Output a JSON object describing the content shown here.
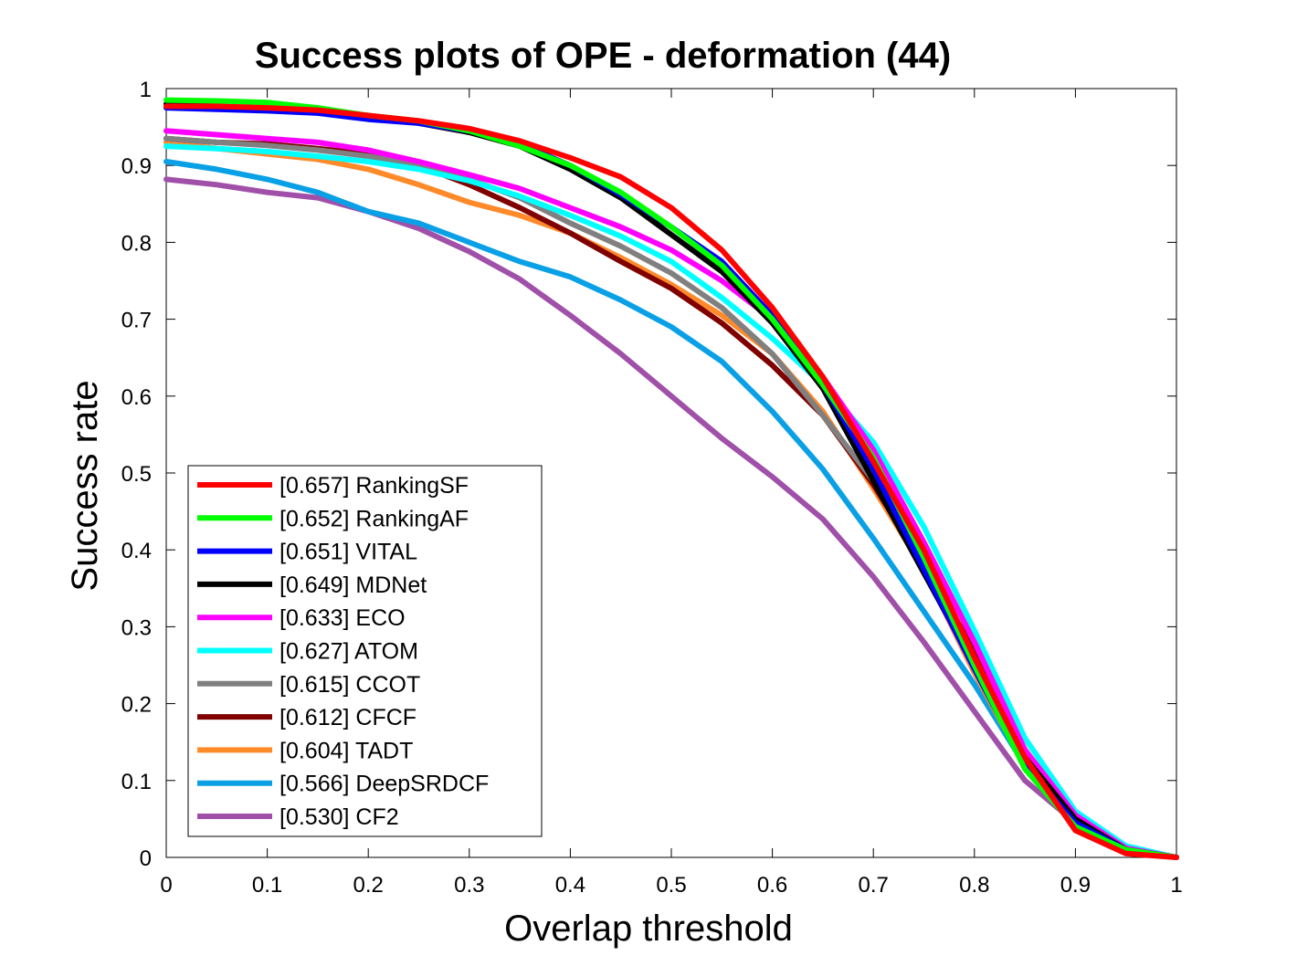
{
  "chart_data": {
    "type": "line",
    "title": "Success plots of OPE - deformation (44)",
    "xlabel": "Overlap threshold",
    "ylabel": "Success rate",
    "xlim": [
      0,
      1
    ],
    "ylim": [
      0,
      1
    ],
    "x_ticks": [
      "0",
      "0.1",
      "0.2",
      "0.3",
      "0.4",
      "0.5",
      "0.6",
      "0.7",
      "0.8",
      "0.9",
      "1"
    ],
    "y_ticks": [
      "0",
      "0.1",
      "0.2",
      "0.3",
      "0.4",
      "0.5",
      "0.6",
      "0.7",
      "0.8",
      "0.9",
      "1"
    ],
    "grid": false,
    "legend_position": "bottom-left",
    "x": [
      0,
      0.05,
      0.1,
      0.15,
      0.2,
      0.25,
      0.3,
      0.35,
      0.4,
      0.45,
      0.5,
      0.55,
      0.6,
      0.65,
      0.7,
      0.75,
      0.8,
      0.85,
      0.9,
      0.95,
      1.0
    ],
    "series": [
      {
        "name": "[0.657] RankingSF",
        "color": "#ff0000",
        "values": [
          0.977,
          0.977,
          0.975,
          0.972,
          0.965,
          0.958,
          0.948,
          0.932,
          0.91,
          0.885,
          0.845,
          0.79,
          0.715,
          0.625,
          0.515,
          0.4,
          0.26,
          0.13,
          0.035,
          0.005,
          0.0
        ]
      },
      {
        "name": "[0.652] RankingAF",
        "color": "#00ff00",
        "values": [
          0.985,
          0.984,
          0.982,
          0.975,
          0.965,
          0.958,
          0.945,
          0.925,
          0.9,
          0.865,
          0.82,
          0.77,
          0.7,
          0.615,
          0.52,
          0.39,
          0.25,
          0.115,
          0.04,
          0.01,
          0.0
        ]
      },
      {
        "name": "[0.651] VITAL",
        "color": "#0000ff",
        "values": [
          0.975,
          0.973,
          0.971,
          0.968,
          0.96,
          0.955,
          0.945,
          0.928,
          0.9,
          0.862,
          0.82,
          0.775,
          0.705,
          0.615,
          0.505,
          0.375,
          0.245,
          0.12,
          0.045,
          0.01,
          0.0
        ]
      },
      {
        "name": "[0.649] MDNet",
        "color": "#000000",
        "values": [
          0.98,
          0.977,
          0.974,
          0.97,
          0.965,
          0.955,
          0.943,
          0.925,
          0.895,
          0.858,
          0.81,
          0.762,
          0.695,
          0.61,
          0.49,
          0.37,
          0.25,
          0.13,
          0.05,
          0.01,
          0.0
        ]
      },
      {
        "name": "[0.633] ECO",
        "color": "#ff00ff",
        "values": [
          0.945,
          0.94,
          0.935,
          0.93,
          0.92,
          0.905,
          0.888,
          0.87,
          0.845,
          0.82,
          0.79,
          0.75,
          0.7,
          0.625,
          0.53,
          0.41,
          0.28,
          0.14,
          0.055,
          0.012,
          0.0
        ]
      },
      {
        "name": "[0.627] ATOM",
        "color": "#00ffff",
        "values": [
          0.925,
          0.922,
          0.918,
          0.912,
          0.905,
          0.895,
          0.88,
          0.86,
          0.835,
          0.808,
          0.775,
          0.728,
          0.675,
          0.615,
          0.54,
          0.43,
          0.295,
          0.155,
          0.06,
          0.015,
          0.0
        ]
      },
      {
        "name": "[0.615] CCOT",
        "color": "#808080",
        "values": [
          0.935,
          0.93,
          0.926,
          0.92,
          0.912,
          0.9,
          0.882,
          0.858,
          0.825,
          0.795,
          0.76,
          0.715,
          0.655,
          0.575,
          0.49,
          0.38,
          0.255,
          0.125,
          0.045,
          0.01,
          0.0
        ]
      },
      {
        "name": "[0.612] CFCF",
        "color": "#800000",
        "values": [
          0.935,
          0.93,
          0.928,
          0.922,
          0.915,
          0.9,
          0.875,
          0.845,
          0.812,
          0.775,
          0.74,
          0.695,
          0.64,
          0.575,
          0.485,
          0.38,
          0.27,
          0.14,
          0.05,
          0.012,
          0.0
        ]
      },
      {
        "name": "[0.604] TADT",
        "color": "#ff8a2a",
        "values": [
          0.93,
          0.922,
          0.915,
          0.908,
          0.895,
          0.875,
          0.852,
          0.835,
          0.812,
          0.78,
          0.745,
          0.705,
          0.655,
          0.58,
          0.48,
          0.375,
          0.24,
          0.12,
          0.045,
          0.01,
          0.0
        ]
      },
      {
        "name": "[0.566] DeepSRDCF",
        "color": "#0aa0e6",
        "values": [
          0.905,
          0.895,
          0.882,
          0.865,
          0.84,
          0.825,
          0.8,
          0.775,
          0.755,
          0.725,
          0.69,
          0.645,
          0.58,
          0.505,
          0.415,
          0.32,
          0.225,
          0.12,
          0.055,
          0.012,
          0.0
        ]
      },
      {
        "name": "[0.530] CF2",
        "color": "#a050a8",
        "values": [
          0.882,
          0.875,
          0.865,
          0.858,
          0.84,
          0.818,
          0.788,
          0.752,
          0.705,
          0.655,
          0.6,
          0.545,
          0.495,
          0.44,
          0.365,
          0.28,
          0.19,
          0.1,
          0.045,
          0.01,
          0.0
        ]
      }
    ]
  }
}
